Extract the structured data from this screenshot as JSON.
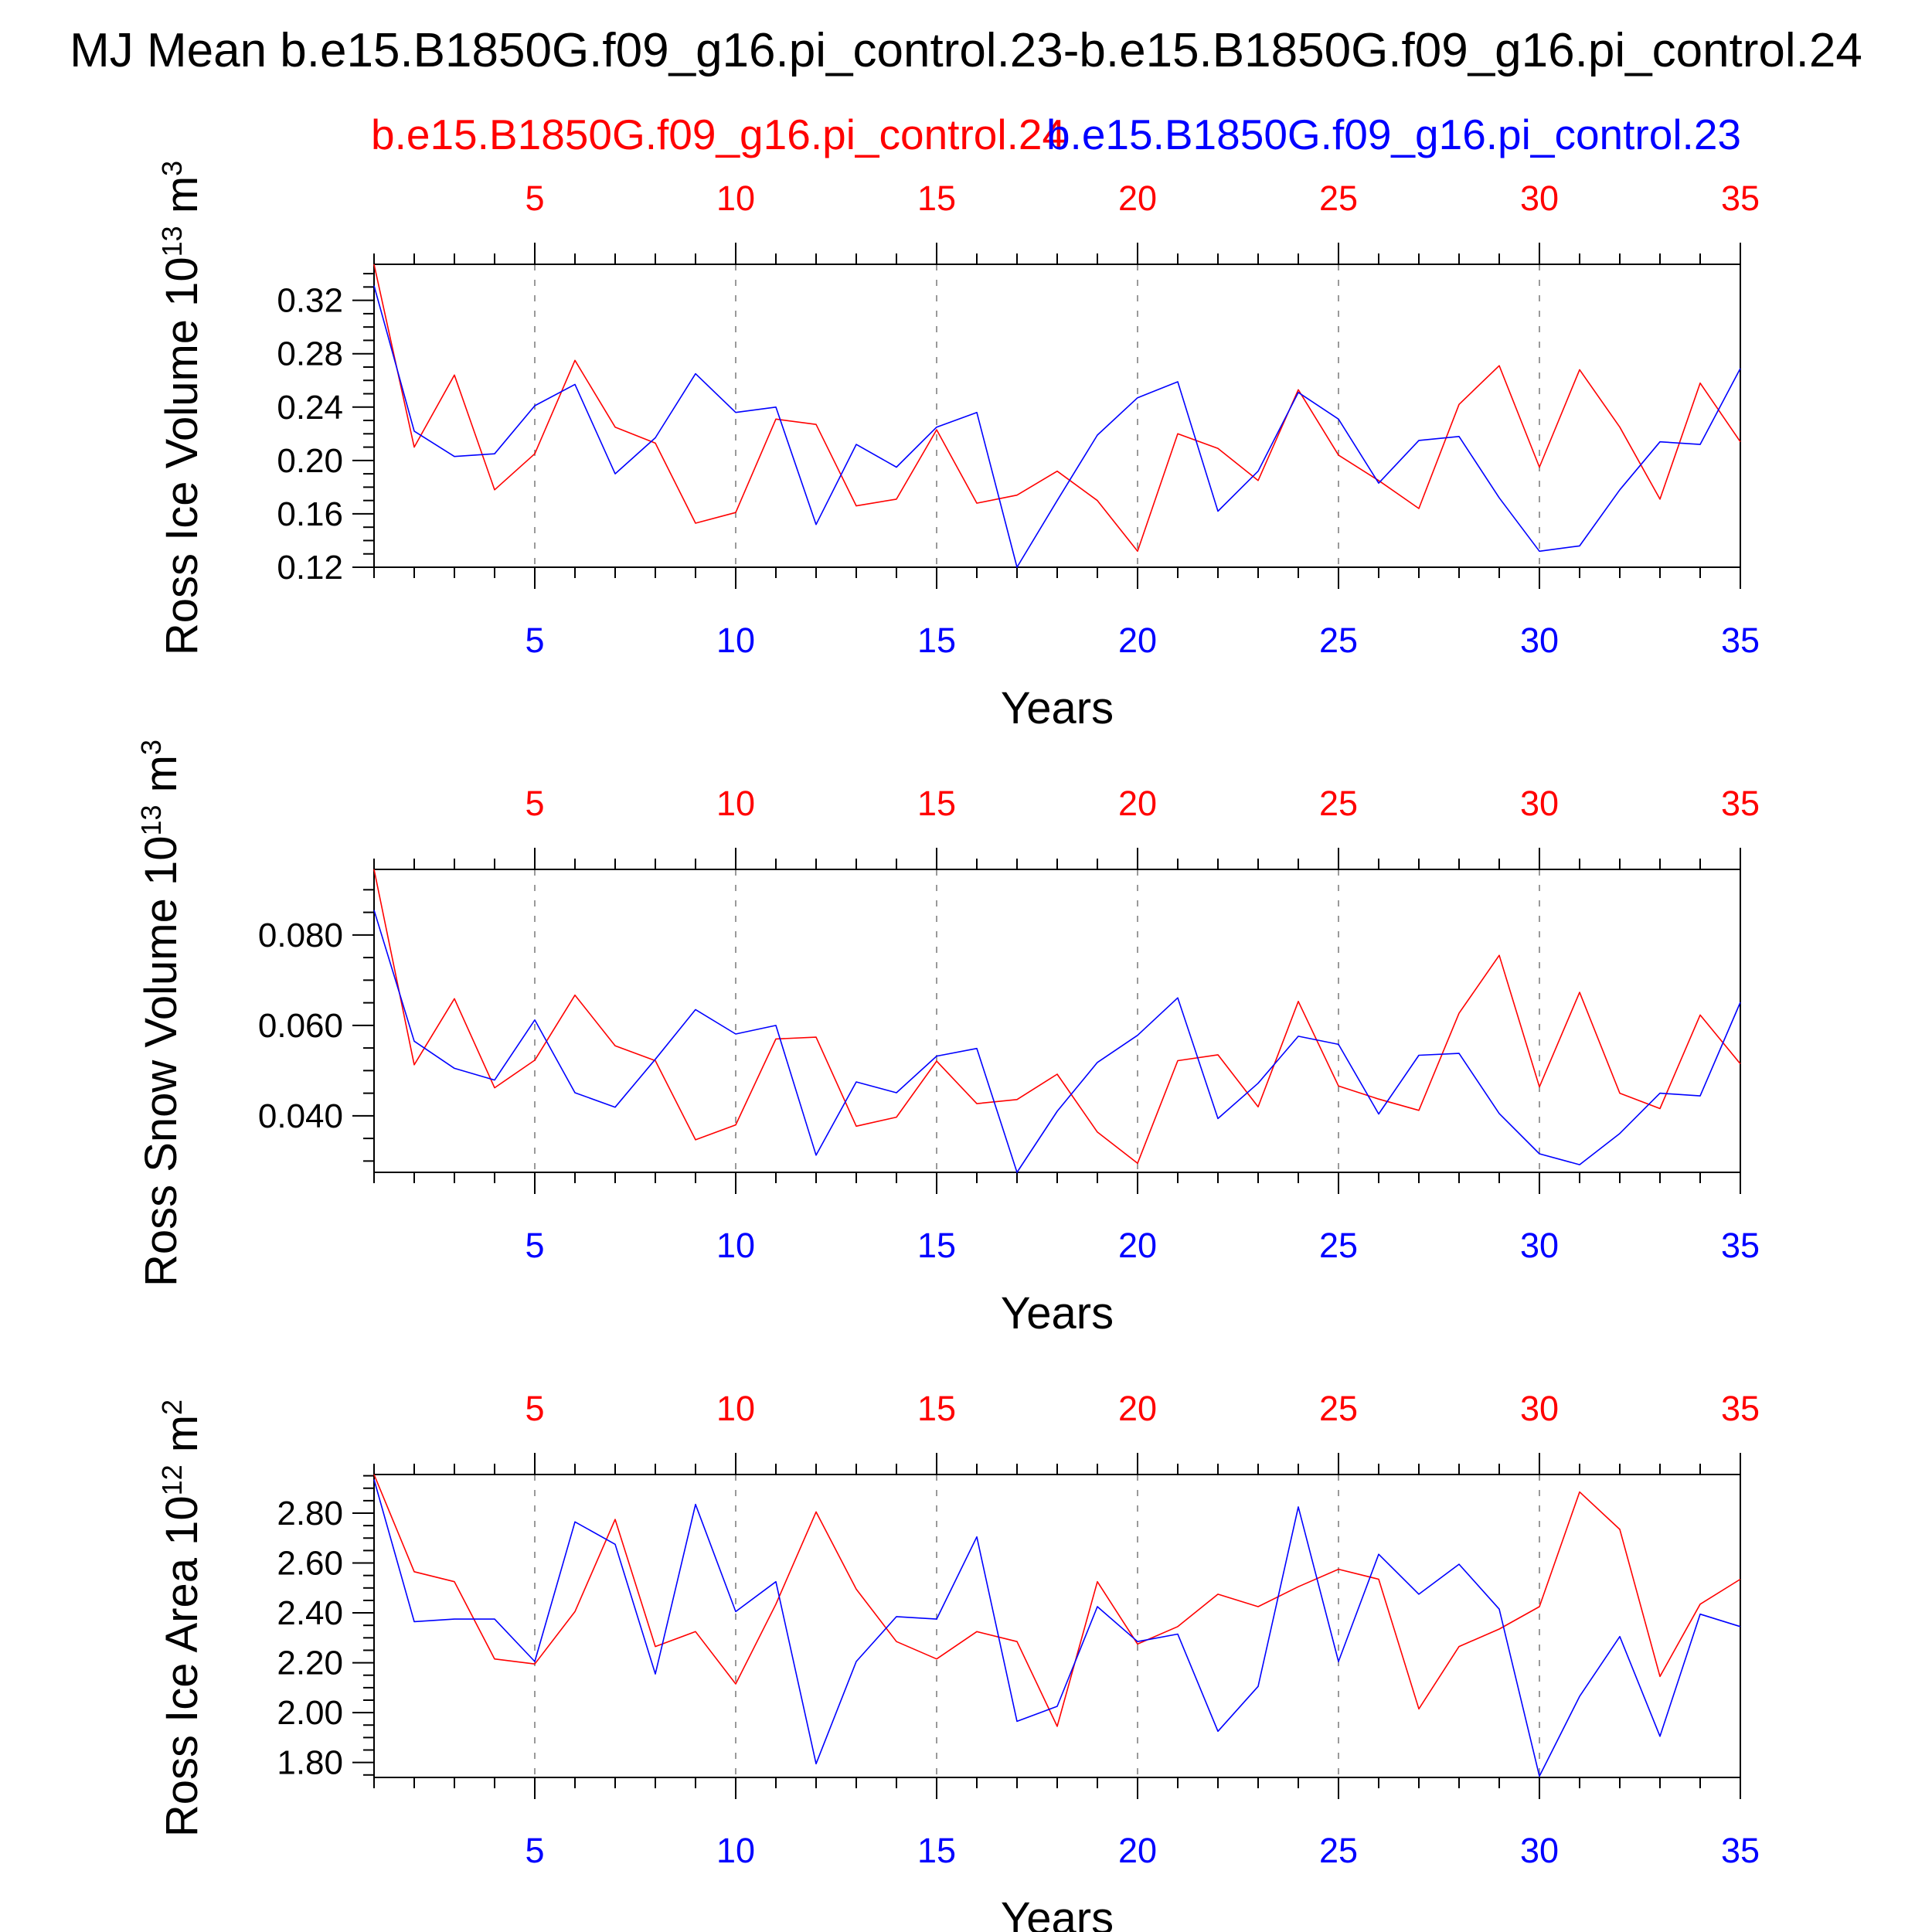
{
  "figure": {
    "title": "MJ Mean b.e15.B1850G.f09_g16.pi_control.23-b.e15.B1850G.f09_g16.pi_control.24",
    "legend_red": "b.e15.B1850G.f09_g16.pi_control.24",
    "legend_blue": "b.e15.B1850G.f09_g16.pi_control.23",
    "colors": {
      "red": "#ff0000",
      "blue": "#0000ff",
      "axis": "#000000",
      "grid": "#9a9a9a"
    }
  },
  "chart_data": [
    {
      "type": "line",
      "ylabel": "Ross Ice Volume 10",
      "ylabel_exp": "13",
      "ylabel_unit": " m",
      "ylabel_unit_exp": "3",
      "xlabel": "Years",
      "xlim": [
        1,
        35
      ],
      "ylim": [
        0.12,
        0.347
      ],
      "xticks": [
        5,
        10,
        15,
        20,
        25,
        30,
        35
      ],
      "yticks": [
        0.12,
        0.16,
        0.2,
        0.24,
        0.28,
        0.32
      ],
      "ytick_labels": [
        "0.12",
        "0.16",
        "0.20",
        "0.24",
        "0.28",
        "0.32"
      ],
      "grid": "vertical dashed at major x ticks",
      "x": [
        1,
        2,
        3,
        4,
        5,
        6,
        7,
        8,
        9,
        10,
        11,
        12,
        13,
        14,
        15,
        16,
        17,
        18,
        19,
        20,
        21,
        22,
        23,
        24,
        25,
        26,
        27,
        28,
        29,
        30,
        31,
        32,
        33,
        34,
        35
      ],
      "series": [
        {
          "color": "red",
          "values": [
            0.347,
            0.21,
            0.264,
            0.178,
            0.205,
            0.275,
            0.225,
            0.213,
            0.153,
            0.161,
            0.231,
            0.227,
            0.166,
            0.171,
            0.223,
            0.168,
            0.174,
            0.192,
            0.17,
            0.132,
            0.22,
            0.209,
            0.185,
            0.253,
            0.204,
            0.185,
            0.164,
            0.242,
            0.271,
            0.195,
            0.268,
            0.225,
            0.171,
            0.258,
            0.214
          ]
        },
        {
          "color": "blue",
          "values": [
            0.331,
            0.222,
            0.203,
            0.205,
            0.241,
            0.257,
            0.19,
            0.217,
            0.265,
            0.236,
            0.24,
            0.152,
            0.212,
            0.195,
            0.225,
            0.236,
            0.12,
            0.17,
            0.219,
            0.247,
            0.259,
            0.162,
            0.192,
            0.251,
            0.231,
            0.183,
            0.215,
            0.218,
            0.172,
            0.132,
            0.136,
            0.178,
            0.214,
            0.212,
            0.269
          ]
        }
      ]
    },
    {
      "type": "line",
      "ylabel": "Ross Snow Volume 10",
      "ylabel_exp": "13",
      "ylabel_unit": " m",
      "ylabel_unit_exp": "3",
      "xlabel": "Years",
      "xlim": [
        1,
        35
      ],
      "ylim": [
        0.0275,
        0.0945
      ],
      "xticks": [
        5,
        10,
        15,
        20,
        25,
        30,
        35
      ],
      "yticks": [
        0.04,
        0.06,
        0.08
      ],
      "ytick_labels": [
        "0.040",
        "0.060",
        "0.080"
      ],
      "grid": "vertical dashed at major x ticks",
      "x": [
        1,
        2,
        3,
        4,
        5,
        6,
        7,
        8,
        9,
        10,
        11,
        12,
        13,
        14,
        15,
        16,
        17,
        18,
        19,
        20,
        21,
        22,
        23,
        24,
        25,
        26,
        27,
        28,
        29,
        30,
        31,
        32,
        33,
        34,
        35
      ],
      "series": [
        {
          "color": "red",
          "values": [
            0.0945,
            0.0513,
            0.0659,
            0.0462,
            0.0523,
            0.0667,
            0.0555,
            0.0522,
            0.0347,
            0.038,
            0.057,
            0.0574,
            0.0377,
            0.0397,
            0.0521,
            0.0427,
            0.0436,
            0.0492,
            0.0364,
            0.0295,
            0.0522,
            0.0535,
            0.042,
            0.0653,
            0.0466,
            0.0437,
            0.0412,
            0.0627,
            0.0755,
            0.0464,
            0.0673,
            0.045,
            0.0416,
            0.0623,
            0.0515
          ]
        },
        {
          "color": "blue",
          "values": [
            0.0855,
            0.0565,
            0.0505,
            0.0479,
            0.0612,
            0.0451,
            0.0419,
            0.0525,
            0.0635,
            0.0581,
            0.06,
            0.0313,
            0.0475,
            0.0451,
            0.0532,
            0.0549,
            0.0275,
            0.041,
            0.0518,
            0.0578,
            0.0661,
            0.0394,
            0.0472,
            0.0576,
            0.0558,
            0.0404,
            0.0534,
            0.0538,
            0.0405,
            0.0316,
            0.0292,
            0.0361,
            0.045,
            0.0444,
            0.0651
          ]
        }
      ]
    },
    {
      "type": "line",
      "ylabel": "Ross Ice Area 10",
      "ylabel_exp": "12",
      "ylabel_unit": " m",
      "ylabel_unit_exp": "2",
      "xlabel": "Years",
      "xlim": [
        1,
        35
      ],
      "ylim": [
        1.74,
        2.955
      ],
      "xticks": [
        5,
        10,
        15,
        20,
        25,
        30,
        35
      ],
      "yticks": [
        1.8,
        2.0,
        2.2,
        2.4,
        2.6,
        2.8
      ],
      "ytick_labels": [
        "1.80",
        "2.00",
        "2.20",
        "2.40",
        "2.60",
        "2.80"
      ],
      "grid": "vertical dashed at major x ticks",
      "x": [
        1,
        2,
        3,
        4,
        5,
        6,
        7,
        8,
        9,
        10,
        11,
        12,
        13,
        14,
        15,
        16,
        17,
        18,
        19,
        20,
        21,
        22,
        23,
        24,
        25,
        26,
        27,
        28,
        29,
        30,
        31,
        32,
        33,
        34,
        35
      ],
      "series": [
        {
          "color": "red",
          "values": [
            2.955,
            2.565,
            2.525,
            2.215,
            2.195,
            2.405,
            2.775,
            2.265,
            2.325,
            2.115,
            2.435,
            2.805,
            2.495,
            2.285,
            2.215,
            2.325,
            2.285,
            1.945,
            2.525,
            2.275,
            2.345,
            2.475,
            2.425,
            2.505,
            2.575,
            2.535,
            2.015,
            2.265,
            2.335,
            2.425,
            2.885,
            2.735,
            2.145,
            2.435,
            2.535
          ]
        },
        {
          "color": "blue",
          "values": [
            2.935,
            2.365,
            2.375,
            2.375,
            2.205,
            2.765,
            2.675,
            2.155,
            2.835,
            2.405,
            2.525,
            1.795,
            2.205,
            2.385,
            2.375,
            2.705,
            1.965,
            2.025,
            2.425,
            2.285,
            2.315,
            1.925,
            2.105,
            2.825,
            2.205,
            2.635,
            2.475,
            2.595,
            2.415,
            1.745,
            2.065,
            2.305,
            1.905,
            2.395,
            2.345
          ]
        }
      ]
    }
  ]
}
